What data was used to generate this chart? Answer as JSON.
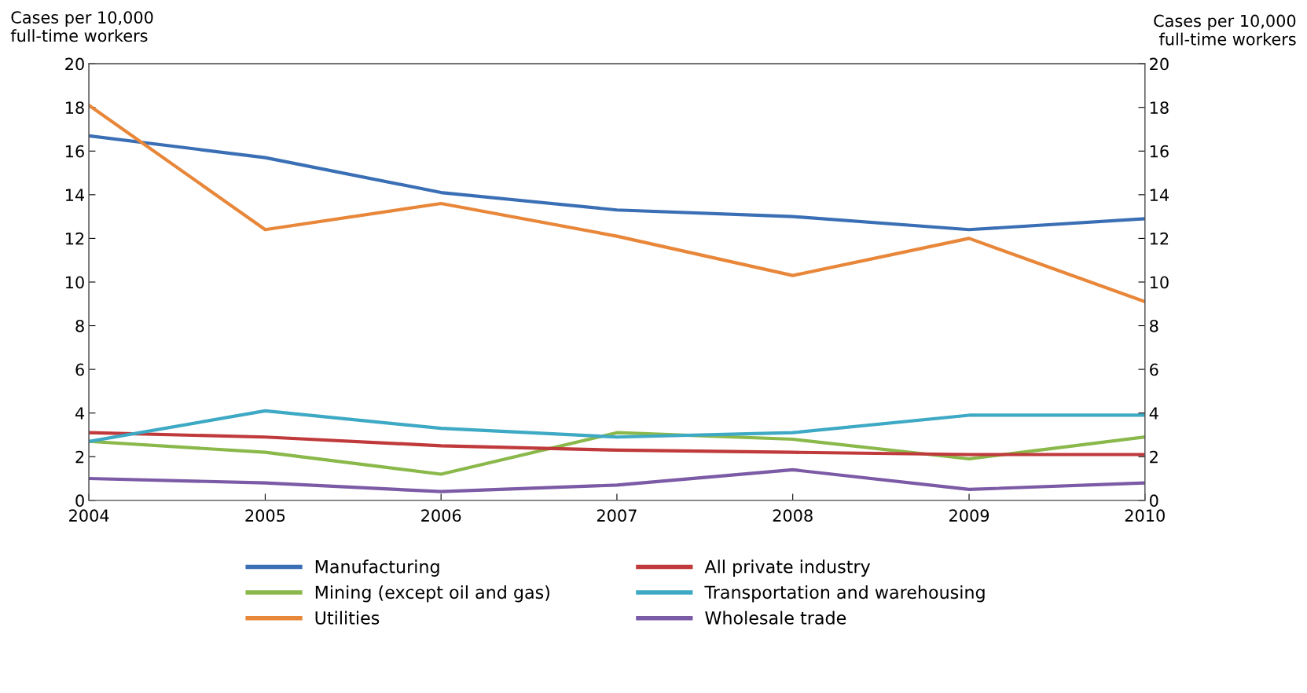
{
  "chart_data": {
    "type": "line",
    "x": [
      "2004",
      "2005",
      "2006",
      "2007",
      "2008",
      "2009",
      "2010"
    ],
    "xlim": [
      "2004",
      "2010"
    ],
    "xticks": [
      {
        "value": "2004",
        "label": "2004"
      },
      {
        "value": "2005",
        "label": "2005"
      },
      {
        "value": "2006",
        "label": "2006"
      },
      {
        "value": "2007",
        "label": "2007"
      },
      {
        "value": "2008",
        "label": "2008"
      },
      {
        "value": "2009",
        "label": "2009"
      },
      {
        "value": "2010",
        "label": "2010"
      }
    ],
    "ylabel": "Cases per 10,000\nfull-time workers",
    "y2label": "Cases per 10,000\nfull-time workers",
    "ylim": [
      0,
      20
    ],
    "yticks": [
      0,
      2,
      4,
      6,
      8,
      10,
      12,
      14,
      16,
      18,
      20
    ],
    "y2lim": [
      0,
      20
    ],
    "y2ticks": [
      0,
      2,
      4,
      6,
      8,
      10,
      12,
      14,
      16,
      18,
      20
    ],
    "grid": false,
    "legend": "bottom",
    "marker": "none",
    "line_style": "solid",
    "series": [
      {
        "name": "Manufacturing",
        "color": "#3a6fb5",
        "values": [
          16.7,
          15.7,
          14.1,
          13.3,
          13.0,
          12.4,
          12.9
        ]
      },
      {
        "name": "Mining (except oil and gas)",
        "color": "#8ab84a",
        "values": [
          2.7,
          2.2,
          1.2,
          3.1,
          2.8,
          1.9,
          2.9
        ]
      },
      {
        "name": "Utilities",
        "color": "#e8873a",
        "values": [
          18.1,
          12.4,
          13.6,
          12.1,
          10.3,
          12.0,
          9.1
        ]
      },
      {
        "name": "All private industry",
        "color": "#c0393b",
        "values": [
          3.1,
          2.9,
          2.5,
          2.3,
          2.2,
          2.1,
          2.1
        ]
      },
      {
        "name": "Transportation and warehousing",
        "color": "#3ea9c4",
        "values": [
          2.7,
          4.1,
          3.3,
          2.9,
          3.1,
          3.9,
          3.9
        ]
      },
      {
        "name": "Wholesale trade",
        "color": "#7b5aa6",
        "values": [
          1.0,
          0.8,
          0.4,
          0.7,
          1.4,
          0.5,
          0.8
        ]
      }
    ]
  }
}
